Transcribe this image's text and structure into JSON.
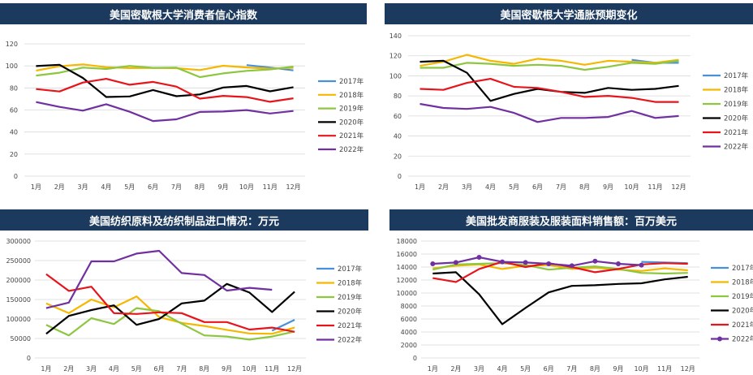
{
  "months": [
    "1月",
    "2月",
    "3月",
    "4月",
    "5月",
    "6月",
    "7月",
    "8月",
    "9月",
    "10月",
    "11月",
    "12月"
  ],
  "chart_data": [
    {
      "type": "line",
      "title": "美国密歇根大学消费者信心指数",
      "categories": [
        "1月",
        "2月",
        "3月",
        "4月",
        "5月",
        "6月",
        "7月",
        "8月",
        "9月",
        "10月",
        "11月",
        "12月"
      ],
      "ylim": [
        0,
        120
      ],
      "yticks": [
        0,
        20,
        40,
        60,
        80,
        100,
        120
      ],
      "ytick_labels": [
        "0",
        "20",
        "40",
        "60",
        "80",
        "100",
        "120"
      ],
      "series": [
        {
          "name": "2017年",
          "color": "#4a90d9",
          "marker": false,
          "values": [
            null,
            null,
            null,
            null,
            null,
            null,
            null,
            null,
            null,
            100.7,
            98.5,
            95.9
          ]
        },
        {
          "name": "2018年",
          "color": "#f5b800",
          "marker": false,
          "values": [
            95.7,
            99.7,
            101.4,
            98.8,
            98.0,
            98.2,
            97.9,
            96.2,
            100.1,
            98.6,
            97.5,
            98.3
          ]
        },
        {
          "name": "2019年",
          "color": "#8dc63f",
          "marker": false,
          "values": [
            91.2,
            93.8,
            98.4,
            97.2,
            100.0,
            98.2,
            98.4,
            89.8,
            93.2,
            95.5,
            96.8,
            99.3
          ]
        },
        {
          "name": "2020年",
          "color": "#000000",
          "marker": false,
          "values": [
            99.8,
            101.0,
            89.1,
            71.8,
            72.3,
            78.1,
            72.5,
            74.1,
            80.4,
            81.8,
            76.9,
            80.7
          ]
        },
        {
          "name": "2021年",
          "color": "#e8141b",
          "marker": false,
          "values": [
            79.0,
            76.8,
            84.9,
            88.3,
            82.9,
            85.5,
            81.2,
            70.3,
            72.8,
            71.7,
            67.4,
            70.6
          ]
        },
        {
          "name": "2022年",
          "color": "#7030a0",
          "marker": false,
          "values": [
            67.2,
            62.8,
            59.4,
            65.2,
            58.4,
            50.0,
            51.5,
            58.2,
            58.6,
            59.9,
            56.8,
            59.1
          ]
        }
      ]
    },
    {
      "type": "line",
      "title": "美国密歇根大学通胀预期变化",
      "categories": [
        "1月",
        "2月",
        "3月",
        "4月",
        "5月",
        "6月",
        "7月",
        "8月",
        "9月",
        "10月",
        "11月",
        "12月"
      ],
      "ylim": [
        0,
        140
      ],
      "yticks": [
        0,
        20,
        40,
        60,
        80,
        100,
        120,
        140
      ],
      "ytick_labels": [
        "0",
        "20",
        "40",
        "60",
        "80",
        "100",
        "120",
        "140"
      ],
      "series": [
        {
          "name": "2017年",
          "color": "#4a90d9",
          "marker": false,
          "values": [
            null,
            null,
            null,
            null,
            null,
            null,
            null,
            null,
            null,
            116,
            113,
            113
          ]
        },
        {
          "name": "2018年",
          "color": "#f5b800",
          "marker": false,
          "values": [
            110,
            114,
            121,
            115,
            112,
            117,
            115,
            111,
            115,
            114,
            113,
            116
          ]
        },
        {
          "name": "2019年",
          "color": "#8dc63f",
          "marker": false,
          "values": [
            108,
            108,
            113,
            112,
            110,
            111,
            110,
            106,
            109,
            113,
            112,
            115
          ]
        },
        {
          "name": "2020年",
          "color": "#000000",
          "marker": false,
          "values": [
            114,
            115,
            103,
            75,
            82,
            87,
            84,
            83,
            88,
            86,
            87,
            90
          ]
        },
        {
          "name": "2021年",
          "color": "#e8141b",
          "marker": false,
          "values": [
            87,
            86,
            93,
            97,
            89,
            88,
            84,
            79,
            80,
            78,
            74,
            74
          ]
        },
        {
          "name": "2022年",
          "color": "#7030a0",
          "marker": false,
          "values": [
            72,
            68,
            67,
            69,
            63,
            54,
            58,
            58,
            59,
            65,
            58,
            60
          ]
        }
      ]
    },
    {
      "type": "line",
      "title": "美国纺织原料及纺织制品进口情况：万元",
      "categories": [
        "1月",
        "2月",
        "3月",
        "4月",
        "5月",
        "6月",
        "7月",
        "8月",
        "9月",
        "10月",
        "11月",
        "12月"
      ],
      "ylim": [
        0,
        300000
      ],
      "yticks": [
        0,
        50000,
        100000,
        150000,
        200000,
        250000,
        300000
      ],
      "ytick_labels": [
        "0",
        "50000",
        "100000",
        "150000",
        "200000",
        "250000",
        "300000"
      ],
      "series": [
        {
          "name": "2017年",
          "color": "#4a90d9",
          "marker": false,
          "values": [
            null,
            null,
            null,
            null,
            null,
            null,
            null,
            null,
            null,
            null,
            70000,
            98000
          ]
        },
        {
          "name": "2018年",
          "color": "#f5b800",
          "marker": false,
          "values": [
            140000,
            115000,
            150000,
            130000,
            158000,
            105000,
            90000,
            82000,
            72000,
            63000,
            62000,
            78000
          ]
        },
        {
          "name": "2019年",
          "color": "#8dc63f",
          "marker": false,
          "values": [
            85000,
            58000,
            102000,
            87000,
            128000,
            120000,
            88000,
            58000,
            55000,
            47000,
            55000,
            68000
          ]
        },
        {
          "name": "2020年",
          "color": "#000000",
          "marker": false,
          "values": [
            62000,
            108000,
            123000,
            135000,
            85000,
            100000,
            140000,
            147000,
            190000,
            168000,
            118000,
            170000
          ]
        },
        {
          "name": "2021年",
          "color": "#e8141b",
          "marker": false,
          "values": [
            215000,
            172000,
            183000,
            115000,
            113000,
            117000,
            115000,
            92000,
            92000,
            73000,
            78000,
            67000
          ]
        },
        {
          "name": "2022年",
          "color": "#7030a0",
          "marker": false,
          "values": [
            128000,
            142000,
            248000,
            248000,
            268000,
            275000,
            218000,
            213000,
            173000,
            180000,
            175000,
            null
          ]
        }
      ]
    },
    {
      "type": "line",
      "title": "美国批发商服装及服装面料销售额：百万美元",
      "categories": [
        "1月",
        "2月",
        "3月",
        "4月",
        "5月",
        "6月",
        "7月",
        "8月",
        "9月",
        "10月",
        "11月",
        "12月"
      ],
      "ylim": [
        0,
        18000
      ],
      "yticks": [
        0,
        2000,
        4000,
        6000,
        8000,
        10000,
        12000,
        14000,
        16000,
        18000
      ],
      "ytick_labels": [
        "0",
        "2000",
        "4000",
        "6000",
        "8000",
        "10000",
        "12000",
        "14000",
        "16000",
        "18000"
      ],
      "series": [
        {
          "name": "2017年",
          "color": "#4a90d9",
          "marker": false,
          "values": [
            null,
            null,
            null,
            null,
            null,
            null,
            null,
            null,
            null,
            14800,
            14700,
            14600
          ]
        },
        {
          "name": "2018年",
          "color": "#f5b800",
          "marker": false,
          "values": [
            13800,
            14200,
            14400,
            13700,
            14200,
            14300,
            13700,
            13900,
            13600,
            13400,
            13800,
            13500
          ]
        },
        {
          "name": "2019年",
          "color": "#8dc63f",
          "marker": false,
          "values": [
            13600,
            14400,
            14500,
            14600,
            14300,
            13600,
            13900,
            14100,
            13700,
            13100,
            13000,
            13100
          ]
        },
        {
          "name": "2020年",
          "color": "#000000",
          "marker": false,
          "values": [
            13000,
            13200,
            9800,
            5200,
            7700,
            10100,
            11100,
            11200,
            11400,
            11500,
            12100,
            12500
          ]
        },
        {
          "name": "2021年",
          "color": "#e8141b",
          "marker": false,
          "values": [
            12300,
            11700,
            13700,
            14800,
            14000,
            14600,
            14000,
            13200,
            13700,
            14400,
            14600,
            14500
          ]
        },
        {
          "name": "2022年",
          "color": "#7030a0",
          "marker": true,
          "values": [
            14500,
            14700,
            15500,
            14800,
            14700,
            14500,
            14200,
            14900,
            14500,
            14300,
            null,
            null
          ]
        }
      ]
    }
  ]
}
